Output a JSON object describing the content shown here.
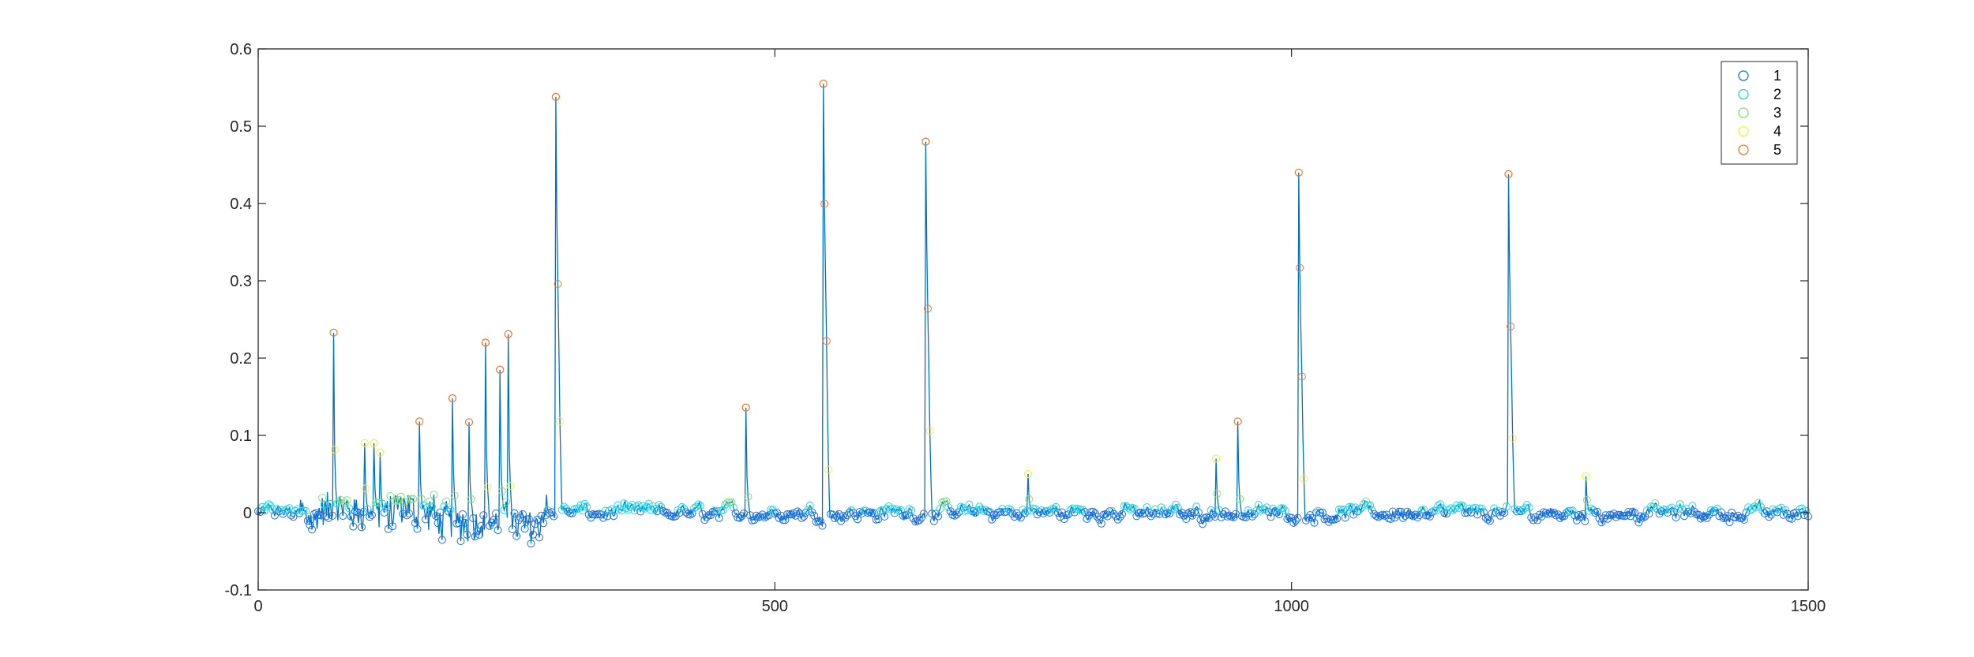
{
  "chart_data": {
    "type": "line",
    "title": "",
    "xlabel": "",
    "ylabel": "",
    "xlim": [
      0,
      1500
    ],
    "ylim": [
      -0.1,
      0.6
    ],
    "xticks": [
      0,
      500,
      1000,
      1500
    ],
    "yticks": [
      -0.1,
      0,
      0.1,
      0.2,
      0.3,
      0.4,
      0.5,
      0.6
    ],
    "xtick_labels": [
      "0",
      "500",
      "1000",
      "1500"
    ],
    "ytick_labels": [
      "-0.1",
      "0",
      "0.1",
      "0.2",
      "0.3",
      "0.4",
      "0.5",
      "0.6"
    ],
    "grid": false,
    "legend_position": "top-right",
    "line_color": "#0072BD",
    "series": [
      {
        "name": "1",
        "color": "#1F6FE0",
        "marker": "circle"
      },
      {
        "name": "2",
        "color": "#1FD6E8",
        "marker": "circle"
      },
      {
        "name": "3",
        "color": "#7CE07C",
        "marker": "circle"
      },
      {
        "name": "4",
        "color": "#F2F23A",
        "marker": "circle"
      },
      {
        "name": "5",
        "color": "#F07830",
        "marker": "circle"
      }
    ],
    "peaks": [
      {
        "x": 73,
        "y": 0.233
      },
      {
        "x": 103,
        "y": 0.09
      },
      {
        "x": 112,
        "y": 0.09
      },
      {
        "x": 118,
        "y": 0.078
      },
      {
        "x": 156,
        "y": 0.118
      },
      {
        "x": 188,
        "y": 0.148
      },
      {
        "x": 204,
        "y": 0.117
      },
      {
        "x": 220,
        "y": 0.22
      },
      {
        "x": 234,
        "y": 0.185
      },
      {
        "x": 242,
        "y": 0.231
      },
      {
        "x": 288,
        "y": 0.538
      },
      {
        "x": 472,
        "y": 0.136
      },
      {
        "x": 547,
        "y": 0.555
      },
      {
        "x": 646,
        "y": 0.48
      },
      {
        "x": 745,
        "y": 0.05
      },
      {
        "x": 927,
        "y": 0.07
      },
      {
        "x": 948,
        "y": 0.118
      },
      {
        "x": 1007,
        "y": 0.44
      },
      {
        "x": 1210,
        "y": 0.438
      },
      {
        "x": 1285,
        "y": 0.047
      }
    ]
  }
}
